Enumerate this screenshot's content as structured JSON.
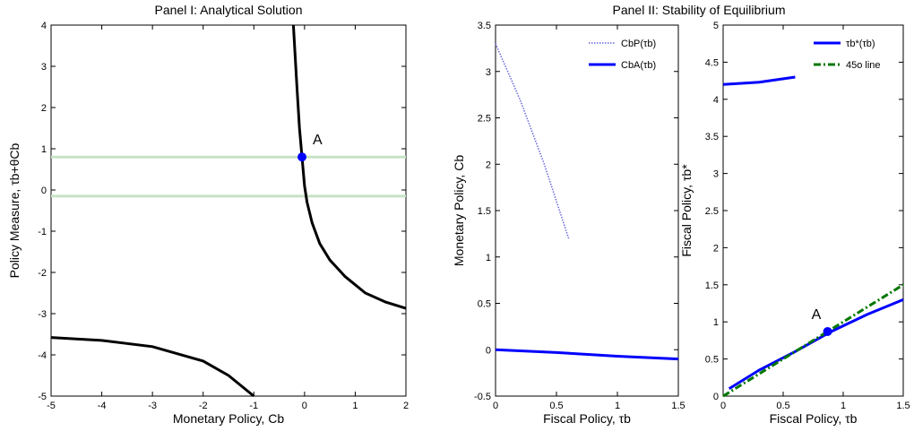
{
  "chart_data": [
    {
      "type": "line",
      "title": "Panel I: Analytical Solution",
      "xlabel": "Monetary Policy, Cb",
      "ylabel": "Policy Measure, τb+θCb",
      "xlim": [
        -5,
        2
      ],
      "ylim": [
        -5,
        4
      ],
      "xticks": [
        -5,
        -4,
        -3,
        -2,
        -1,
        0,
        1,
        2
      ],
      "yticks": [
        -5,
        -4,
        -3,
        -2,
        -1,
        0,
        1,
        2,
        3,
        4
      ],
      "annotations": [
        {
          "text": "A"
        }
      ],
      "series": [
        {
          "color": "#c5e3c5",
          "style": "solid",
          "x": [
            -5,
            2
          ],
          "values": [
            0.8,
            0.8
          ]
        },
        {
          "color": "#c5e3c5",
          "style": "solid",
          "x": [
            -5,
            2
          ],
          "values": [
            -0.15,
            -0.15
          ]
        },
        {
          "color": "#000000",
          "style": "solid",
          "x": [
            -0.22,
            -0.15,
            -0.1,
            -0.05,
            0,
            0.05,
            0.15,
            0.3,
            0.5,
            0.8,
            1.2,
            1.6,
            2,
            null,
            -5,
            -4,
            -3,
            -2,
            -1.5,
            -1
          ],
          "values": [
            4,
            2.5,
            1.5,
            0.8,
            0.1,
            -0.3,
            -0.8,
            -1.3,
            -1.7,
            -2.1,
            -2.5,
            -2.72,
            -2.87,
            null,
            -3.58,
            -3.65,
            -3.8,
            -4.15,
            -4.5,
            -5
          ]
        },
        {
          "color": "#0000ff",
          "style": "marker",
          "x": [
            -0.05
          ],
          "values": [
            0.8
          ]
        }
      ]
    },
    {
      "type": "line",
      "title": "Panel II: Stability of Equilibrium",
      "xlabel": "Fiscal Policy, τb",
      "ylabel": "Monetary Policy, Cb",
      "xlim": [
        0,
        1.5
      ],
      "ylim": [
        -0.5,
        3.5
      ],
      "xticks": [
        0,
        0.5,
        1,
        1.5
      ],
      "yticks": [
        -0.5,
        0,
        0.5,
        1,
        1.5,
        2,
        2.5,
        3,
        3.5
      ],
      "series": [
        {
          "name": "CbP(τb)",
          "color": "#6666dd",
          "style": "dotted",
          "x": [
            0,
            0.1,
            0.2,
            0.3,
            0.4,
            0.5,
            0.6
          ],
          "values": [
            3.3,
            3.0,
            2.7,
            2.35,
            2.0,
            1.6,
            1.2
          ]
        },
        {
          "name": "CbA(τb)",
          "color": "#0000ff",
          "style": "solid",
          "x": [
            0,
            0.5,
            1,
            1.5
          ],
          "values": [
            0,
            -0.03,
            -0.07,
            -0.1
          ]
        }
      ]
    },
    {
      "type": "line",
      "xlabel": "Fiscal Policy, τb",
      "ylabel": "Fiscal Policy, τb*",
      "xlim": [
        0,
        1.5
      ],
      "ylim": [
        0,
        5
      ],
      "xticks": [
        0,
        0.5,
        1,
        1.5
      ],
      "yticks": [
        0,
        0.5,
        1,
        1.5,
        2,
        2.5,
        3,
        3.5,
        4,
        4.5,
        5
      ],
      "annotations": [
        {
          "text": "A"
        }
      ],
      "series": [
        {
          "name": "τb*(τb)",
          "color": "#0000ff",
          "style": "solid",
          "x": [
            0,
            0.3,
            0.6,
            null,
            0.05,
            0.3,
            0.6,
            0.9,
            1.2,
            1.5
          ],
          "values": [
            4.2,
            4.23,
            4.3,
            null,
            0.1,
            0.35,
            0.6,
            0.87,
            1.1,
            1.3
          ]
        },
        {
          "name": "45o line",
          "color": "#007700",
          "style": "dashdot",
          "x": [
            0,
            1.5
          ],
          "values": [
            0,
            1.5
          ]
        },
        {
          "color": "#0000ff",
          "style": "marker",
          "x": [
            0.87
          ],
          "values": [
            0.87
          ]
        }
      ]
    }
  ]
}
